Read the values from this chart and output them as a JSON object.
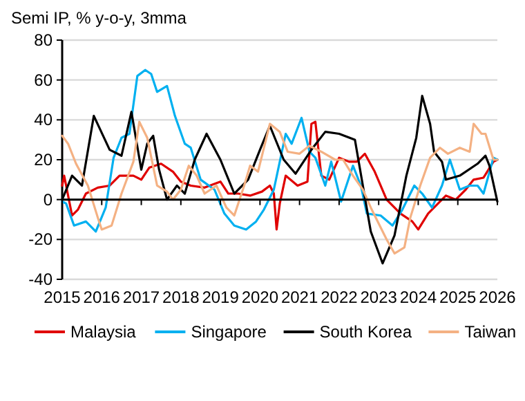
{
  "chart_data": {
    "type": "line",
    "title": "Semi IP, % y-o-y, 3mma",
    "xlim": [
      2015,
      2026
    ],
    "xticks": [
      2015,
      2016,
      2017,
      2018,
      2019,
      2020,
      2021,
      2022,
      2023,
      2024,
      2025,
      2026
    ],
    "ylim": [
      -40,
      80
    ],
    "yticks": [
      -40,
      -20,
      0,
      20,
      40,
      60,
      80
    ],
    "grid": "y",
    "legend": "bottom",
    "line_style": "solid",
    "marker": "none",
    "series": [
      {
        "name": "Malaysia",
        "color": "#e00000",
        "x": [
          2015.0,
          2015.05,
          2015.25,
          2015.4,
          2015.6,
          2015.9,
          2016.2,
          2016.45,
          2016.8,
          2017.0,
          2017.2,
          2017.5,
          2017.8,
          2018.0,
          2018.25,
          2018.6,
          2019.0,
          2019.2,
          2019.45,
          2019.75,
          2020.05,
          2020.25,
          2020.35,
          2020.42,
          2020.5,
          2020.65,
          2020.95,
          2021.2,
          2021.3,
          2021.4,
          2021.55,
          2021.75,
          2022.0,
          2022.25,
          2022.45,
          2022.65,
          2022.9,
          2023.2,
          2023.55,
          2023.85,
          2024.0,
          2024.25,
          2024.5,
          2024.7,
          2024.95,
          2025.2,
          2025.4,
          2025.65,
          2025.9,
          2026.0
        ],
        "values": [
          7,
          12,
          -8,
          -5,
          3,
          6,
          7,
          12,
          12,
          10,
          16,
          18,
          14,
          9,
          7,
          6,
          9,
          3,
          3,
          2,
          4,
          7,
          3,
          -15,
          -2,
          12,
          7,
          9,
          38,
          39,
          12,
          10,
          21,
          19,
          19,
          23,
          14,
          0,
          -7,
          -11,
          -15,
          -7,
          -2,
          2,
          0,
          5,
          10,
          11,
          19,
          20
        ]
      },
      {
        "name": "Singapore",
        "color": "#00b0f0",
        "x": [
          2015.0,
          2015.1,
          2015.3,
          2015.6,
          2015.85,
          2016.1,
          2016.3,
          2016.5,
          2016.7,
          2016.9,
          2017.1,
          2017.25,
          2017.4,
          2017.65,
          2017.85,
          2018.1,
          2018.25,
          2018.5,
          2018.85,
          2019.1,
          2019.35,
          2019.65,
          2019.9,
          2020.1,
          2020.35,
          2020.65,
          2020.8,
          2021.05,
          2021.25,
          2021.4,
          2021.65,
          2021.8,
          2022.05,
          2022.35,
          2022.55,
          2022.7,
          2023.05,
          2023.35,
          2023.6,
          2023.9,
          2024.1,
          2024.35,
          2024.6,
          2024.8,
          2025.05,
          2025.3,
          2025.5,
          2025.65,
          2025.9,
          2026.0
        ],
        "values": [
          -1,
          -2,
          -13,
          -11,
          -16,
          -4,
          21,
          31,
          33,
          62,
          65,
          63,
          54,
          57,
          42,
          28,
          26,
          10,
          5,
          -7,
          -13,
          -15,
          -11,
          -5,
          5,
          33,
          28,
          41,
          24,
          21,
          7,
          19,
          -1,
          17,
          7,
          -7,
          -8,
          -13,
          -5,
          7,
          3,
          -4,
          7,
          20,
          5,
          7,
          7,
          3,
          21,
          20
        ]
      },
      {
        "name": "South Korea",
        "color": "#000000",
        "x": [
          2015.0,
          2015.25,
          2015.5,
          2015.8,
          2016.2,
          2016.5,
          2016.75,
          2017.0,
          2017.15,
          2017.3,
          2017.45,
          2017.65,
          2017.9,
          2018.1,
          2018.35,
          2018.65,
          2019.0,
          2019.35,
          2019.7,
          2020.0,
          2020.25,
          2020.6,
          2020.9,
          2021.3,
          2021.65,
          2022.0,
          2022.4,
          2022.6,
          2022.8,
          2023.1,
          2023.4,
          2023.7,
          2023.95,
          2024.1,
          2024.3,
          2024.4,
          2024.6,
          2024.7,
          2025.05,
          2025.5,
          2025.7,
          2025.8,
          2026.0
        ],
        "values": [
          0,
          12,
          7,
          42,
          25,
          22,
          44,
          15,
          28,
          32,
          15,
          0,
          7,
          3,
          20,
          33,
          20,
          3,
          10,
          25,
          37,
          20,
          13,
          25,
          34,
          33,
          30,
          7,
          -16,
          -32,
          -18,
          12,
          31,
          52,
          38,
          24,
          19,
          10,
          12,
          18,
          22,
          17,
          -1
        ]
      },
      {
        "name": "Taiwan",
        "color": "#f4b183",
        "x": [
          2015.0,
          2015.15,
          2015.35,
          2015.65,
          2015.9,
          2016.0,
          2016.25,
          2016.5,
          2016.8,
          2016.95,
          2017.15,
          2017.4,
          2017.65,
          2017.8,
          2018.0,
          2018.2,
          2018.4,
          2018.6,
          2018.9,
          2019.15,
          2019.35,
          2019.6,
          2019.75,
          2019.95,
          2020.25,
          2020.5,
          2020.7,
          2021.0,
          2021.25,
          2021.55,
          2021.9,
          2022.1,
          2022.35,
          2022.6,
          2022.8,
          2023.2,
          2023.4,
          2023.65,
          2023.8,
          2024.05,
          2024.3,
          2024.55,
          2024.75,
          2025.05,
          2025.3,
          2025.4,
          2025.6,
          2025.7,
          2025.9,
          2026.0
        ],
        "values": [
          32,
          28,
          18,
          7,
          -9,
          -15,
          -13,
          3,
          19,
          39,
          31,
          7,
          4,
          0,
          5,
          17,
          12,
          3,
          7,
          -4,
          -8,
          7,
          17,
          14,
          38,
          34,
          24,
          23,
          27,
          24,
          20,
          20,
          12,
          5,
          -4,
          -20,
          -27,
          -24,
          -9,
          7,
          21,
          26,
          23,
          26,
          24,
          38,
          33,
          33,
          20,
          20
        ]
      }
    ]
  }
}
